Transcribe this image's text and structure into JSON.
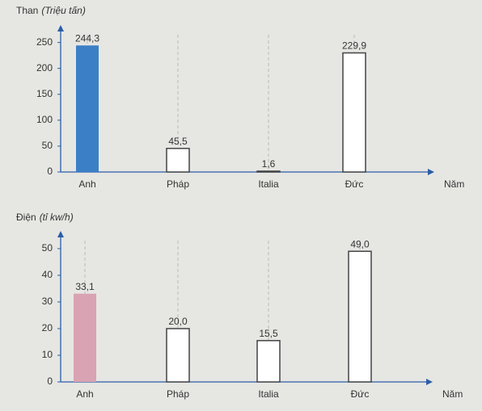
{
  "chart_data": [
    {
      "type": "bar",
      "y_label": "Than",
      "y_unit": "(Triệu tấn)",
      "x_label": "Năm",
      "categories": [
        "Anh",
        "Pháp",
        "Italia",
        "Đức"
      ],
      "values": [
        244.3,
        45.5,
        1.6,
        229.9
      ],
      "value_labels": [
        "244,3",
        "45,5",
        "1,6",
        "229,9"
      ],
      "colors": [
        "#3b80c6",
        "#ffffff",
        "#ffffff",
        "#ffffff"
      ],
      "ylim": [
        0,
        265
      ],
      "yticks": [
        0,
        50,
        100,
        150,
        200,
        250
      ]
    },
    {
      "type": "bar",
      "y_label": "Điện",
      "y_unit": "(tỉ kw/h)",
      "x_label": "Năm",
      "categories": [
        "Anh",
        "Pháp",
        "Italia",
        "Đức"
      ],
      "values": [
        33.1,
        20.0,
        15.5,
        49.0
      ],
      "value_labels": [
        "33,1",
        "20,0",
        "15,5",
        "49,0"
      ],
      "colors": [
        "#d9a3b3",
        "#ffffff",
        "#ffffff",
        "#ffffff"
      ],
      "ylim": [
        0,
        53
      ],
      "yticks": [
        0,
        10,
        20,
        30,
        40,
        50
      ]
    }
  ]
}
